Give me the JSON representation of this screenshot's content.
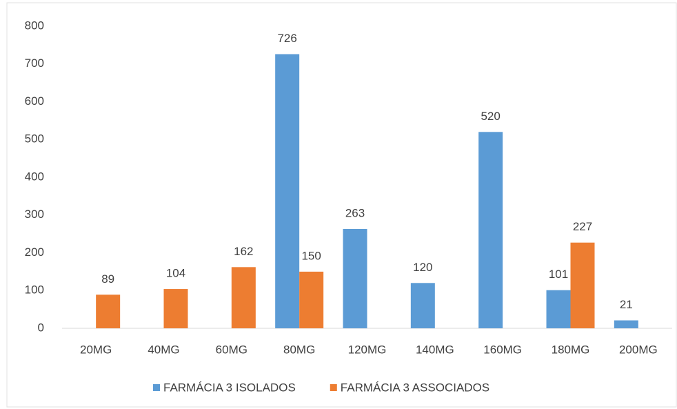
{
  "chart_data": {
    "type": "bar",
    "categories": [
      "20MG",
      "40MG",
      "60MG",
      "80MG",
      "120MG",
      "140MG",
      "160MG",
      "180MG",
      "200MG"
    ],
    "series": [
      {
        "name": "FARMÁCIA 3 ISOLADOS",
        "color": "#5b9bd5",
        "values": [
          null,
          null,
          null,
          726,
          263,
          120,
          520,
          101,
          21
        ]
      },
      {
        "name": "FARMÁCIA 3 ASSOCIADOS",
        "color": "#ed7d31",
        "values": [
          89,
          104,
          162,
          150,
          null,
          null,
          null,
          227,
          null
        ]
      }
    ],
    "ylim": [
      0,
      800
    ],
    "yticks": [
      0,
      100,
      200,
      300,
      400,
      500,
      600,
      700,
      800
    ],
    "grid": false,
    "legend": "bottom"
  }
}
